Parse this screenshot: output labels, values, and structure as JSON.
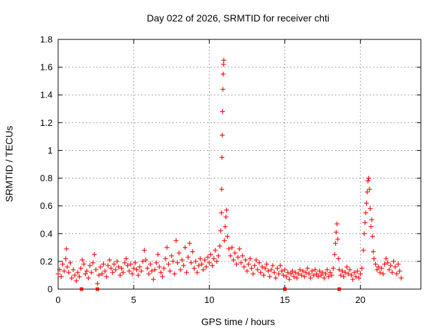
{
  "chart_data": {
    "type": "scatter",
    "title": "Day 022 of 2026, SRMTID for receiver chti",
    "xlabel": "GPS time / hours",
    "ylabel": "SRMTID / TECUs",
    "xlim": [
      0,
      24
    ],
    "ylim": [
      0,
      1.8
    ],
    "xticks": [
      0,
      5,
      10,
      15,
      20
    ],
    "xtick_labels": [
      "0",
      "5",
      "10",
      "15",
      "20"
    ],
    "yticks": [
      0,
      0.2,
      0.4,
      0.6,
      0.8,
      1,
      1.2,
      1.4,
      1.6,
      1.8
    ],
    "ytick_labels": [
      "0",
      "0.2",
      "0.4",
      "0.6",
      "0.8",
      "1",
      "1.2",
      "1.4",
      "1.6",
      "1.8"
    ],
    "grid": true,
    "marker": "+",
    "color": "#ff0000",
    "series": [
      {
        "name": "SRMTID",
        "points": [
          [
            0.0,
            0.11
          ],
          [
            0.1,
            0.14
          ],
          [
            0.2,
            0.09
          ],
          [
            0.3,
            0.18
          ],
          [
            0.4,
            0.13
          ],
          [
            0.5,
            0.22
          ],
          [
            0.55,
            0.29
          ],
          [
            0.6,
            0.16
          ],
          [
            0.7,
            0.12
          ],
          [
            0.8,
            0.19
          ],
          [
            0.9,
            0.08
          ],
          [
            1.0,
            0.14
          ],
          [
            1.1,
            0.1
          ],
          [
            1.2,
            0.06
          ],
          [
            1.3,
            0.12
          ],
          [
            1.4,
            0.09
          ],
          [
            1.5,
            0.15
          ],
          [
            1.6,
            0.21
          ],
          [
            1.7,
            0.18
          ],
          [
            1.8,
            0.11
          ],
          [
            1.9,
            0.13
          ],
          [
            2.0,
            0.08
          ],
          [
            2.1,
            0.17
          ],
          [
            2.2,
            0.12
          ],
          [
            2.3,
            0.19
          ],
          [
            2.4,
            0.25
          ],
          [
            2.5,
            0.14
          ],
          [
            2.6,
            0.04
          ],
          [
            2.7,
            0.1
          ],
          [
            2.8,
            0.16
          ],
          [
            2.9,
            0.11
          ],
          [
            3.0,
            0.18
          ],
          [
            3.1,
            0.13
          ],
          [
            3.2,
            0.09
          ],
          [
            3.3,
            0.17
          ],
          [
            3.4,
            0.21
          ],
          [
            3.5,
            0.15
          ],
          [
            3.6,
            0.12
          ],
          [
            3.7,
            0.18
          ],
          [
            3.8,
            0.14
          ],
          [
            3.9,
            0.2
          ],
          [
            4.0,
            0.16
          ],
          [
            4.1,
            0.1
          ],
          [
            4.2,
            0.15
          ],
          [
            4.3,
            0.12
          ],
          [
            4.4,
            0.19
          ],
          [
            4.5,
            0.22
          ],
          [
            4.6,
            0.17
          ],
          [
            4.7,
            0.13
          ],
          [
            4.8,
            0.18
          ],
          [
            4.9,
            0.11
          ],
          [
            5.0,
            0.15
          ],
          [
            5.1,
            0.19
          ],
          [
            5.2,
            0.14
          ],
          [
            5.3,
            0.1
          ],
          [
            5.4,
            0.16
          ],
          [
            5.5,
            0.13
          ],
          [
            5.6,
            0.2
          ],
          [
            5.7,
            0.28
          ],
          [
            5.8,
            0.21
          ],
          [
            5.9,
            0.15
          ],
          [
            6.0,
            0.11
          ],
          [
            6.1,
            0.18
          ],
          [
            6.2,
            0.13
          ],
          [
            6.3,
            0.07
          ],
          [
            6.4,
            0.14
          ],
          [
            6.5,
            0.19
          ],
          [
            6.6,
            0.25
          ],
          [
            6.7,
            0.16
          ],
          [
            6.8,
            0.12
          ],
          [
            6.9,
            0.09
          ],
          [
            7.0,
            0.15
          ],
          [
            7.1,
            0.22
          ],
          [
            7.2,
            0.3
          ],
          [
            7.3,
            0.18
          ],
          [
            7.4,
            0.13
          ],
          [
            7.5,
            0.24
          ],
          [
            7.6,
            0.2
          ],
          [
            7.7,
            0.11
          ],
          [
            7.8,
            0.35
          ],
          [
            7.9,
            0.19
          ],
          [
            8.0,
            0.26
          ],
          [
            8.1,
            0.14
          ],
          [
            8.2,
            0.21
          ],
          [
            8.3,
            0.17
          ],
          [
            8.4,
            0.3
          ],
          [
            8.5,
            0.12
          ],
          [
            8.6,
            0.23
          ],
          [
            8.7,
            0.33
          ],
          [
            8.8,
            0.19
          ],
          [
            8.9,
            0.27
          ],
          [
            9.0,
            0.15
          ],
          [
            9.1,
            0.2
          ],
          [
            9.2,
            0.12
          ],
          [
            9.3,
            0.17
          ],
          [
            9.4,
            0.22
          ],
          [
            9.5,
            0.18
          ],
          [
            9.6,
            0.14
          ],
          [
            9.7,
            0.21
          ],
          [
            9.8,
            0.16
          ],
          [
            9.9,
            0.23
          ],
          [
            10.0,
            0.19
          ],
          [
            10.1,
            0.25
          ],
          [
            10.2,
            0.17
          ],
          [
            10.3,
            0.22
          ],
          [
            10.4,
            0.28
          ],
          [
            10.5,
            0.2
          ],
          [
            10.6,
            0.24
          ],
          [
            10.7,
            0.31
          ],
          [
            10.75,
            0.42
          ],
          [
            10.8,
            0.55
          ],
          [
            10.82,
            0.72
          ],
          [
            10.84,
            0.95
          ],
          [
            10.86,
            1.11
          ],
          [
            10.88,
            1.28
          ],
          [
            10.9,
            1.44
          ],
          [
            10.92,
            1.55
          ],
          [
            10.94,
            1.62
          ],
          [
            10.96,
            1.65
          ],
          [
            11.0,
            0.35
          ],
          [
            11.05,
            0.45
          ],
          [
            11.1,
            0.52
          ],
          [
            11.15,
            0.57
          ],
          [
            11.2,
            0.38
          ],
          [
            11.3,
            0.29
          ],
          [
            11.4,
            0.24
          ],
          [
            11.5,
            0.3
          ],
          [
            11.6,
            0.21
          ],
          [
            11.7,
            0.26
          ],
          [
            11.8,
            0.18
          ],
          [
            11.9,
            0.23
          ],
          [
            12.0,
            0.29
          ],
          [
            12.1,
            0.19
          ],
          [
            12.2,
            0.24
          ],
          [
            12.3,
            0.16
          ],
          [
            12.4,
            0.21
          ],
          [
            12.5,
            0.13
          ],
          [
            12.6,
            0.18
          ],
          [
            12.7,
            0.22
          ],
          [
            12.8,
            0.15
          ],
          [
            12.9,
            0.11
          ],
          [
            13.0,
            0.17
          ],
          [
            13.1,
            0.21
          ],
          [
            13.2,
            0.14
          ],
          [
            13.3,
            0.19
          ],
          [
            13.4,
            0.12
          ],
          [
            13.5,
            0.16
          ],
          [
            13.6,
            0.1
          ],
          [
            13.7,
            0.15
          ],
          [
            13.8,
            0.18
          ],
          [
            13.9,
            0.13
          ],
          [
            14.0,
            0.09
          ],
          [
            14.1,
            0.14
          ],
          [
            14.2,
            0.17
          ],
          [
            14.3,
            0.12
          ],
          [
            14.4,
            0.08
          ],
          [
            14.5,
            0.15
          ],
          [
            14.6,
            0.11
          ],
          [
            14.7,
            0.17
          ],
          [
            14.8,
            0.13
          ],
          [
            14.9,
            0.1
          ],
          [
            15.0,
            0.14
          ],
          [
            15.1,
            0.09
          ],
          [
            15.2,
            0.12
          ],
          [
            15.3,
            0.07
          ],
          [
            15.4,
            0.11
          ],
          [
            15.5,
            0.13
          ],
          [
            15.6,
            0.09
          ],
          [
            15.7,
            0.12
          ],
          [
            15.8,
            0.08
          ],
          [
            15.9,
            0.11
          ],
          [
            16.0,
            0.14
          ],
          [
            16.1,
            0.1
          ],
          [
            16.2,
            0.13
          ],
          [
            16.3,
            0.09
          ],
          [
            16.4,
            0.12
          ],
          [
            16.5,
            0.15
          ],
          [
            16.6,
            0.11
          ],
          [
            16.7,
            0.08
          ],
          [
            16.8,
            0.13
          ],
          [
            16.9,
            0.1
          ],
          [
            17.0,
            0.14
          ],
          [
            17.1,
            0.11
          ],
          [
            17.2,
            0.09
          ],
          [
            17.3,
            0.13
          ],
          [
            17.4,
            0.1
          ],
          [
            17.5,
            0.12
          ],
          [
            17.6,
            0.08
          ],
          [
            17.7,
            0.11
          ],
          [
            17.8,
            0.14
          ],
          [
            17.9,
            0.09
          ],
          [
            18.0,
            0.12
          ],
          [
            18.1,
            0.1
          ],
          [
            18.2,
            0.15
          ],
          [
            18.3,
            0.25
          ],
          [
            18.35,
            0.33
          ],
          [
            18.4,
            0.41
          ],
          [
            18.45,
            0.47
          ],
          [
            18.5,
            0.36
          ],
          [
            18.55,
            0.22
          ],
          [
            18.6,
            0.14
          ],
          [
            18.7,
            0.1
          ],
          [
            18.8,
            0.13
          ],
          [
            18.9,
            0.09
          ],
          [
            19.0,
            0.12
          ],
          [
            19.1,
            0.16
          ],
          [
            19.2,
            0.11
          ],
          [
            19.3,
            0.14
          ],
          [
            19.4,
            0.1
          ],
          [
            19.5,
            0.07
          ],
          [
            19.6,
            0.12
          ],
          [
            19.7,
            0.09
          ],
          [
            19.8,
            0.13
          ],
          [
            19.9,
            0.08
          ],
          [
            20.0,
            0.11
          ],
          [
            20.1,
            0.15
          ],
          [
            20.2,
            0.28
          ],
          [
            20.25,
            0.4
          ],
          [
            20.3,
            0.48
          ],
          [
            20.35,
            0.55
          ],
          [
            20.4,
            0.62
          ],
          [
            20.45,
            0.7
          ],
          [
            20.5,
            0.78
          ],
          [
            20.55,
            0.8
          ],
          [
            20.6,
            0.72
          ],
          [
            20.65,
            0.58
          ],
          [
            20.7,
            0.45
          ],
          [
            20.75,
            0.5
          ],
          [
            20.8,
            0.38
          ],
          [
            20.85,
            0.27
          ],
          [
            20.9,
            0.22
          ],
          [
            21.0,
            0.18
          ],
          [
            21.1,
            0.14
          ],
          [
            21.2,
            0.16
          ],
          [
            21.3,
            0.12
          ],
          [
            21.4,
            0.15
          ],
          [
            21.5,
            0.11
          ],
          [
            21.6,
            0.18
          ],
          [
            21.7,
            0.22
          ],
          [
            21.8,
            0.19
          ],
          [
            21.9,
            0.14
          ],
          [
            22.0,
            0.17
          ],
          [
            22.1,
            0.12
          ],
          [
            22.2,
            0.2
          ],
          [
            22.3,
            0.16
          ],
          [
            22.4,
            0.11
          ],
          [
            22.5,
            0.18
          ],
          [
            22.6,
            0.13
          ],
          [
            22.7,
            0.08
          ]
        ]
      }
    ],
    "zero_markers": [
      1.55,
      2.6,
      15.0,
      18.6
    ]
  }
}
